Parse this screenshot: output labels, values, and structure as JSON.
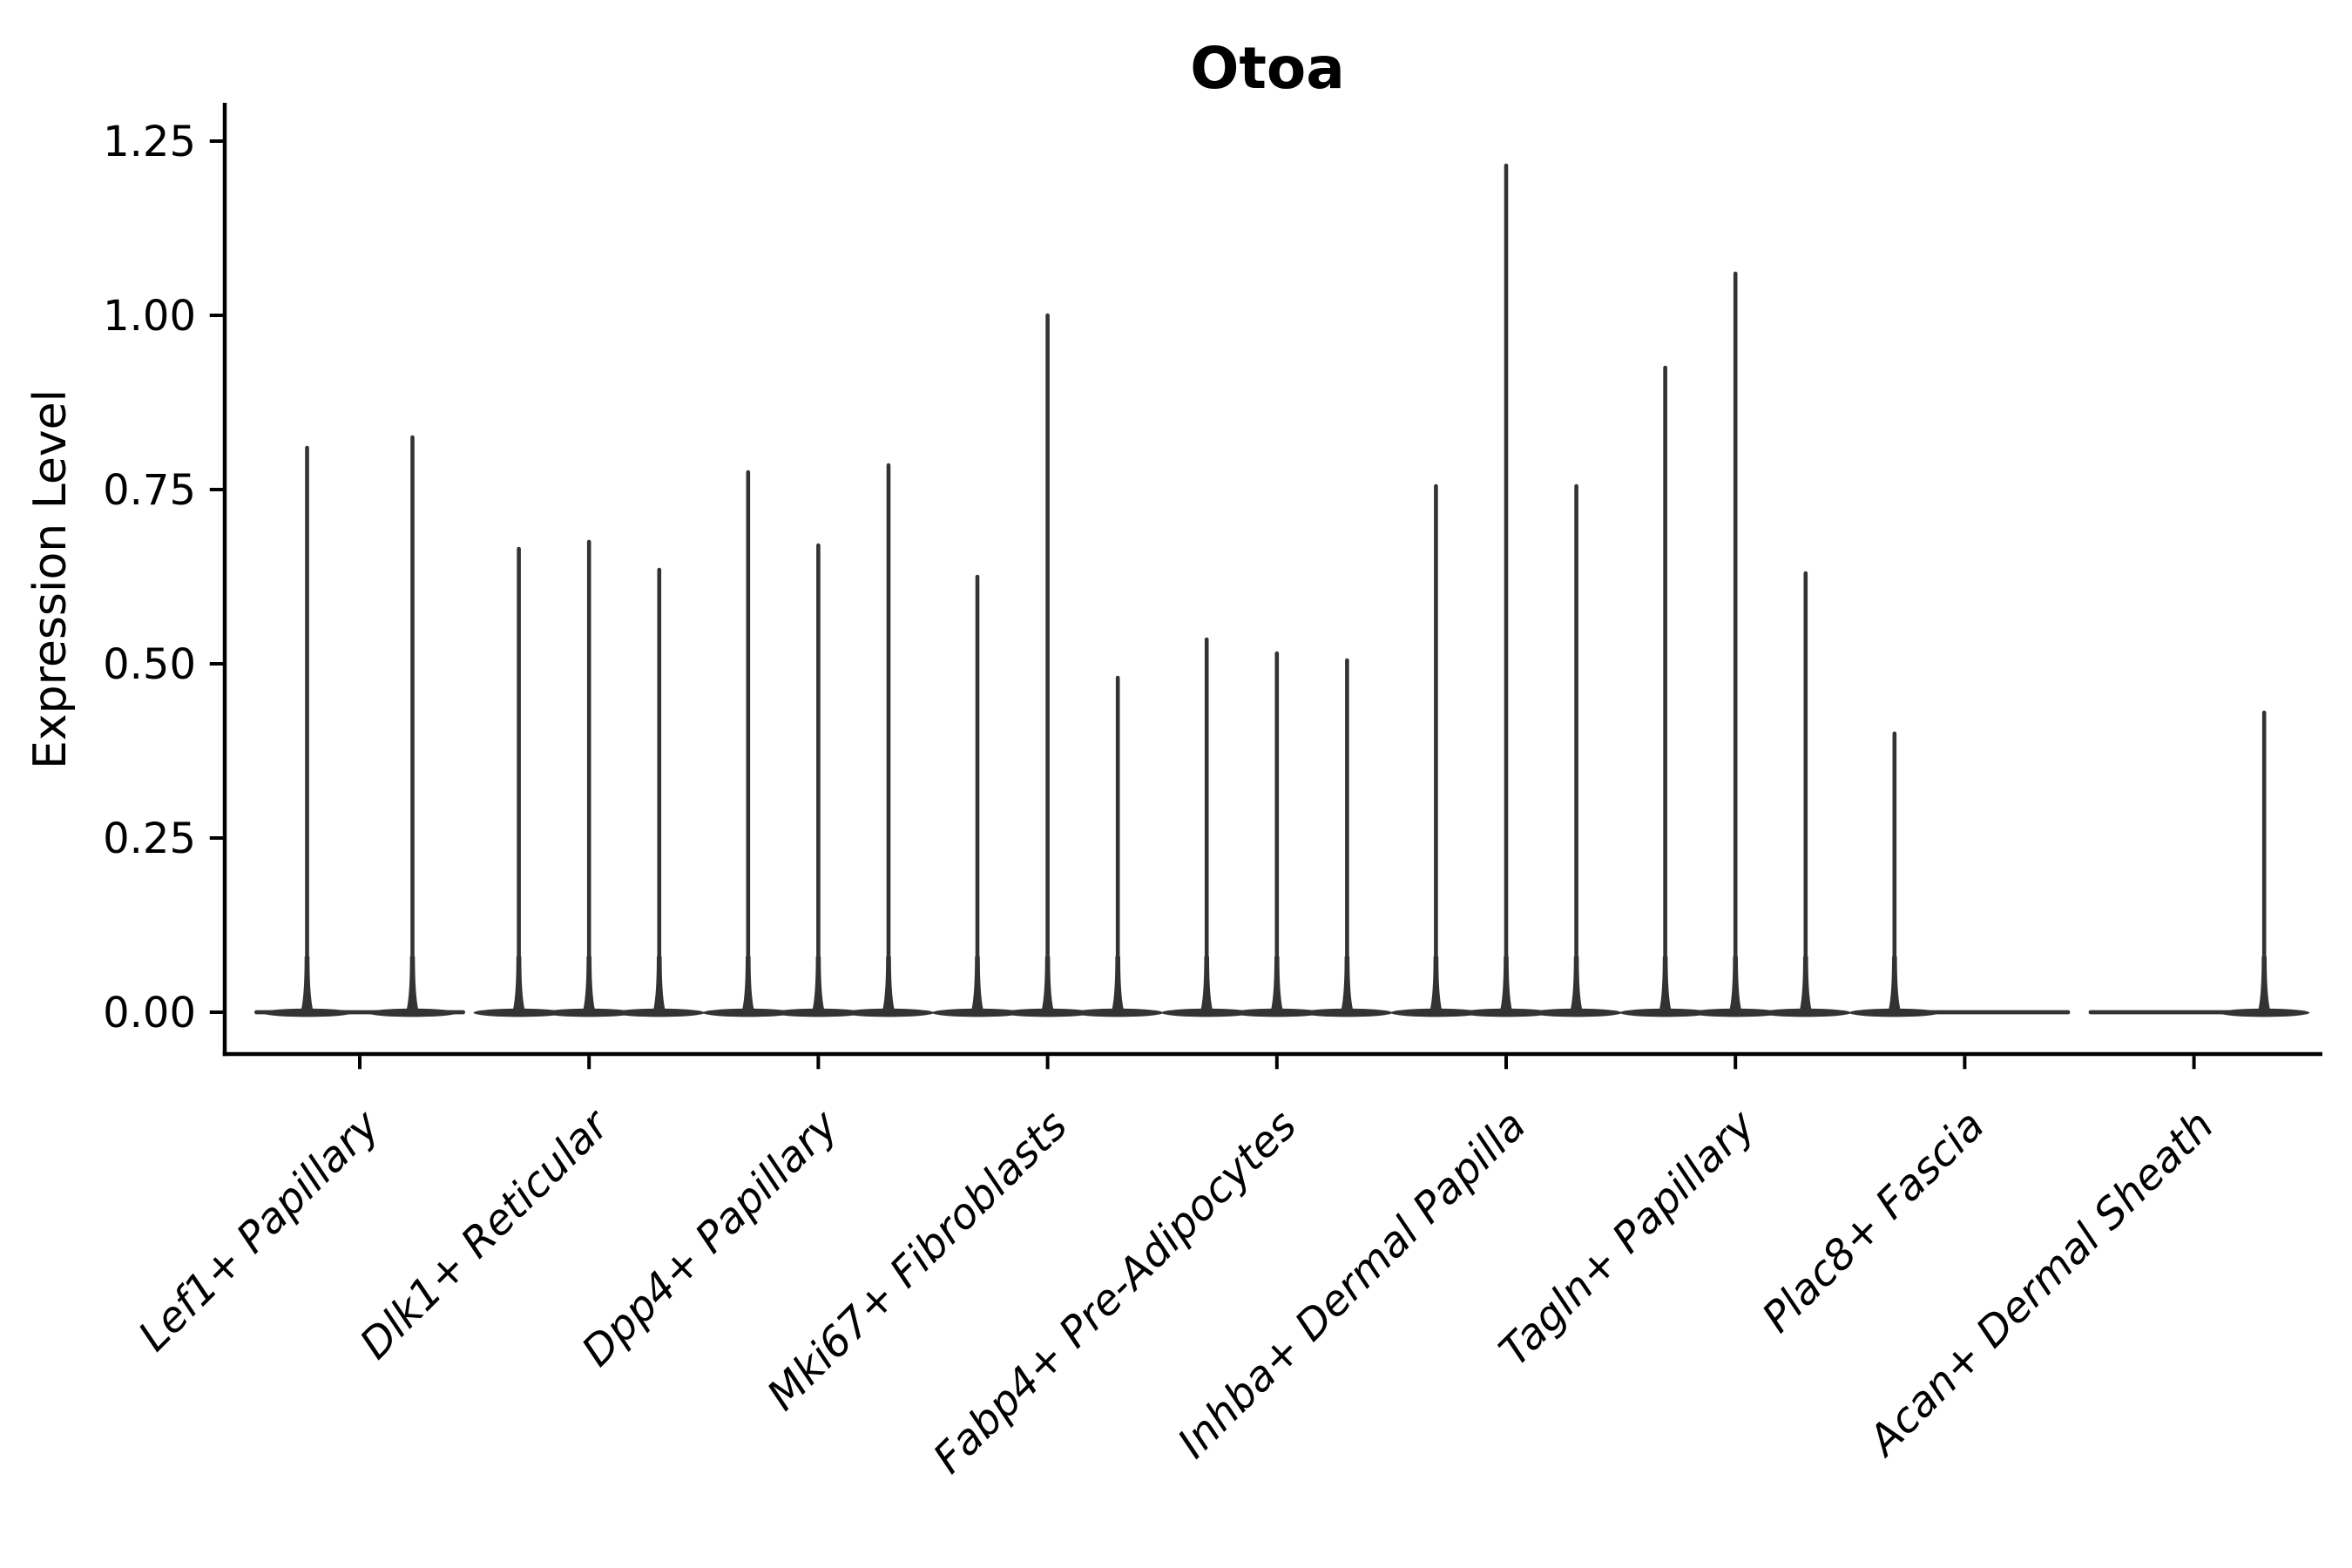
{
  "figure": {
    "background_color": "#ffffff",
    "axis_color": "#000000",
    "violin_color": "#333333"
  },
  "chart_data": {
    "type": "violin",
    "title": "Otoa",
    "xlabel": "",
    "ylabel": "Expression Level",
    "ylim": [
      -0.065,
      1.31
    ],
    "yticks": [
      0.0,
      0.25,
      0.5,
      0.75,
      1.0,
      1.25
    ],
    "ytick_labels": [
      "0.00",
      "0.25",
      "0.50",
      "0.75",
      "1.00",
      "1.25"
    ],
    "grid": false,
    "legend": null,
    "x_tick_rotation": 45,
    "categories": [
      "Lef1+ Papillary",
      "Dlk1+ Reticular",
      "Dpp4+ Papillary",
      "Mki67+ Fibroblasts",
      "Fabp4+ Pre-Adipocytes",
      "Inhba+ Dermal Papilla",
      "Tagln+ Papillary",
      "Plac8+ Fascia",
      "Acan+ Dermal Sheath"
    ],
    "groups": [
      {
        "category": "Lef1+ Papillary",
        "spikes": [
          {
            "pos": 0.25,
            "peak": 0.81
          },
          {
            "pos": 0.75,
            "peak": 0.825
          }
        ]
      },
      {
        "category": "Dlk1+ Reticular",
        "spikes": [
          {
            "pos": 0.167,
            "peak": 0.665
          },
          {
            "pos": 0.5,
            "peak": 0.675
          },
          {
            "pos": 0.833,
            "peak": 0.635
          }
        ]
      },
      {
        "category": "Dpp4+ Papillary",
        "spikes": [
          {
            "pos": 0.167,
            "peak": 0.775
          },
          {
            "pos": 0.5,
            "peak": 0.67
          },
          {
            "pos": 0.833,
            "peak": 0.785
          }
        ]
      },
      {
        "category": "Mki67+ Fibroblasts",
        "spikes": [
          {
            "pos": 0.167,
            "peak": 0.625
          },
          {
            "pos": 0.5,
            "peak": 1.0
          },
          {
            "pos": 0.833,
            "peak": 0.48
          }
        ]
      },
      {
        "category": "Fabp4+ Pre-Adipocytes",
        "spikes": [
          {
            "pos": 0.167,
            "peak": 0.535
          },
          {
            "pos": 0.5,
            "peak": 0.515
          },
          {
            "pos": 0.833,
            "peak": 0.505
          }
        ]
      },
      {
        "category": "Inhba+ Dermal Papilla",
        "spikes": [
          {
            "pos": 0.167,
            "peak": 0.755
          },
          {
            "pos": 0.5,
            "peak": 1.215
          },
          {
            "pos": 0.833,
            "peak": 0.755
          }
        ]
      },
      {
        "category": "Tagln+ Papillary",
        "spikes": [
          {
            "pos": 0.167,
            "peak": 0.925
          },
          {
            "pos": 0.5,
            "peak": 1.06
          },
          {
            "pos": 0.833,
            "peak": 0.63
          }
        ]
      },
      {
        "category": "Plac8+ Fascia",
        "spikes": [
          {
            "pos": 0.167,
            "peak": 0.4
          }
        ]
      },
      {
        "category": "Acan+ Dermal Sheath",
        "spikes": [
          {
            "pos": 0.833,
            "peak": 0.43
          }
        ]
      }
    ]
  }
}
